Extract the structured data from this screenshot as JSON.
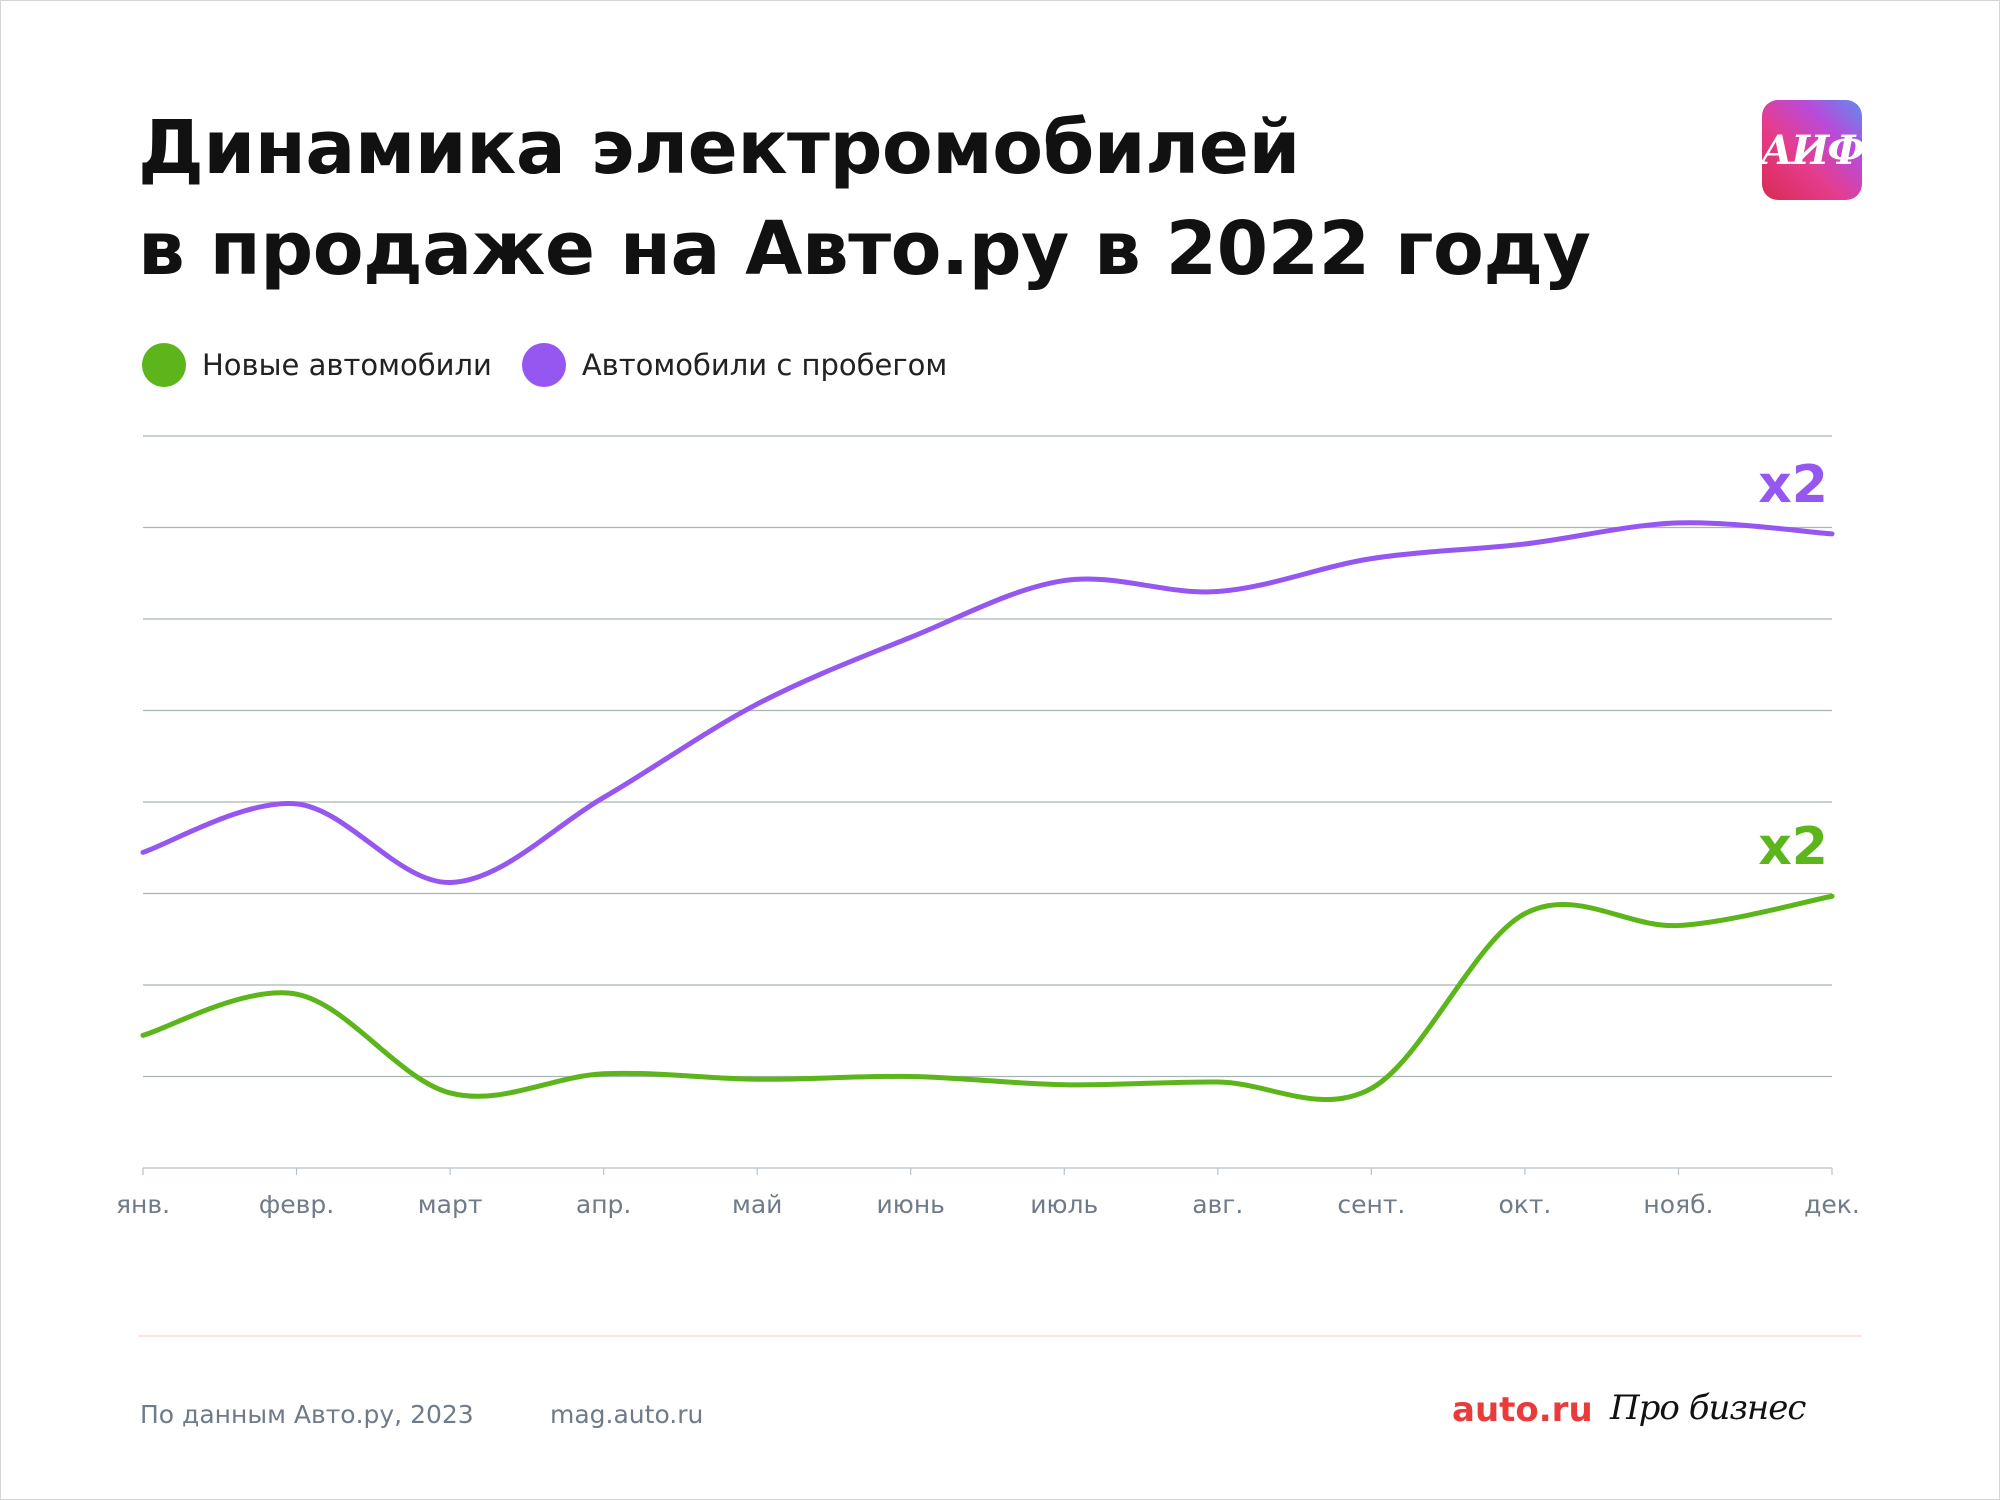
{
  "header": {
    "title_line1": "Динамика электромобилей",
    "title_line2": "в продаже на Авто.ру в 2022 году",
    "logo_text": "АИФ"
  },
  "chart_data": {
    "type": "line",
    "title": "Динамика электромобилей в продаже на Авто.ру в 2022 году",
    "categories": [
      "янв.",
      "февр.",
      "март",
      "апр.",
      "май",
      "июнь",
      "июль",
      "авг.",
      "сент.",
      "окт.",
      "нояб.",
      "дек."
    ],
    "series": [
      {
        "name": "Новые автомобили",
        "color": "#5bb51b",
        "values": [
          1.45,
          1.9,
          0.82,
          1.03,
          0.97,
          1.0,
          0.91,
          0.94,
          0.87,
          2.78,
          2.65,
          2.97
        ],
        "annotation": "x2"
      },
      {
        "name": "Автомобили с пробегом",
        "color": "#9557f0",
        "values": [
          3.45,
          3.98,
          3.12,
          4.05,
          5.07,
          5.8,
          6.42,
          6.3,
          6.66,
          6.82,
          7.05,
          6.93
        ],
        "annotation": "x2"
      }
    ],
    "ylim": [
      0,
      8
    ],
    "yticks_count": 9,
    "ytick_labels": "none",
    "grid": true,
    "legend": "top-left"
  },
  "footer": {
    "source": "По данным Авто.ру, 2023",
    "site": "mag.auto.ru",
    "brand1": "auto.ru",
    "brand2": "Про бизнес"
  }
}
